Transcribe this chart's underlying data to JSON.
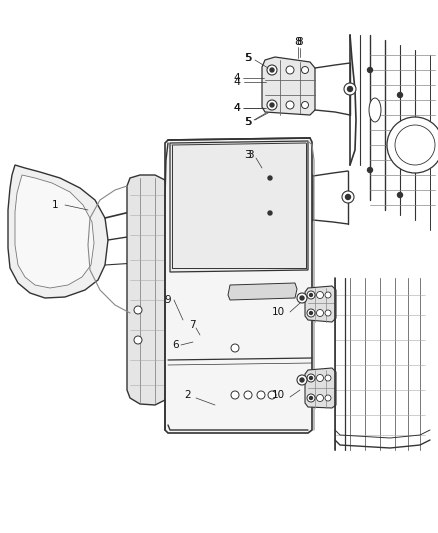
{
  "background_color": "#ffffff",
  "fig_width": 4.38,
  "fig_height": 5.33,
  "dpi": 100,
  "line_color": "#555555",
  "dark_color": "#333333",
  "label_color": "#111111",
  "label_fontsize": 7.5
}
